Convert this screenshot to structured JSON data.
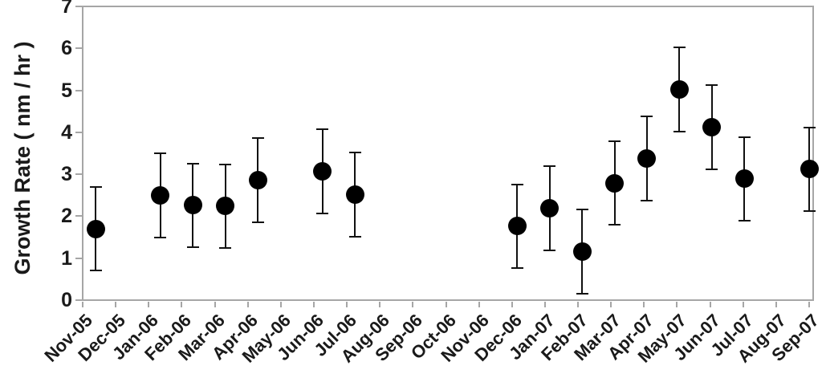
{
  "chart_data": {
    "type": "scatter",
    "title": "",
    "xlabel": "",
    "ylabel": "Growth Rate ( nm / hr )",
    "ylim": [
      0,
      7
    ],
    "yticks": [
      "0",
      "1",
      "2",
      "3",
      "4",
      "5",
      "6",
      "7"
    ],
    "grid": false,
    "legend": false,
    "categories": [
      "Nov-05",
      "Dec-05",
      "Jan-06",
      "Feb-06",
      "Mar-06",
      "Apr-06",
      "May-06",
      "Jun-06",
      "Jul-06",
      "Aug-06",
      "Sep-06",
      "Oct-06",
      "Nov-06",
      "Dec-06",
      "Jan-07",
      "Feb-07",
      "Mar-07",
      "Apr-07",
      "May-07",
      "Jun-07",
      "Jul-07",
      "Aug-07",
      "Sep-07"
    ],
    "series": [
      {
        "name": "Growth Rate",
        "marker": "filled-circle",
        "error_bar": 1.0,
        "values": [
          1.7,
          null,
          2.5,
          2.26,
          2.24,
          2.86,
          null,
          3.07,
          2.52,
          null,
          null,
          null,
          null,
          1.76,
          2.19,
          1.16,
          2.79,
          3.38,
          5.02,
          4.12,
          2.89,
          null,
          3.12
        ]
      }
    ]
  },
  "colors": {
    "background": "#ffffff",
    "axis": "#a6a6a6",
    "text": "#1a1a1a",
    "marker": "#000000"
  }
}
